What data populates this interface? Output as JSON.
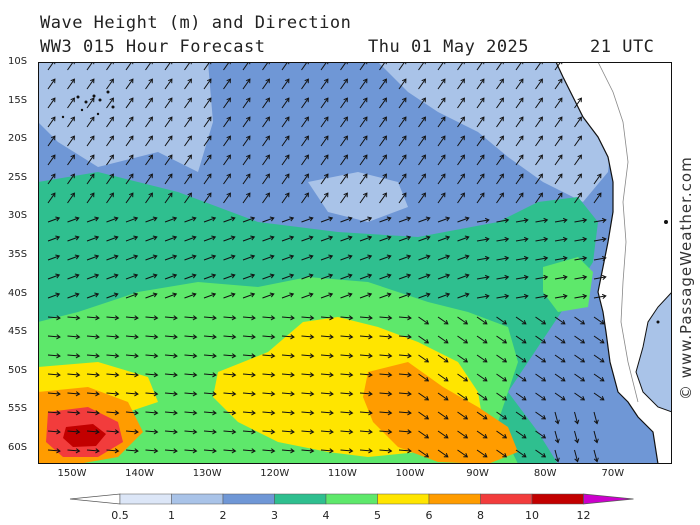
{
  "header": {
    "title": "Wave Height (m) and Direction",
    "model": "WW3 015 Hour Forecast",
    "date": "Thu 01 May 2025",
    "time": "21 UTC"
  },
  "lat_ticks": [
    "10S",
    "15S",
    "20S",
    "25S",
    "30S",
    "35S",
    "40S",
    "45S",
    "50S",
    "55S",
    "60S"
  ],
  "lon_ticks": [
    "150W",
    "140W",
    "130W",
    "120W",
    "110W",
    "100W",
    "90W",
    "80W",
    "70W"
  ],
  "credit": "© www.PassageWeather.com",
  "legend": {
    "values": [
      "0.5",
      "1",
      "2",
      "3",
      "4",
      "5",
      "6",
      "8",
      "10",
      "12"
    ],
    "colors": [
      "#dce6f7",
      "#a9c3e8",
      "#6f97d6",
      "#2fbf8f",
      "#5ee86b",
      "#ffe500",
      "#ff9c00",
      "#f23c3c",
      "#c20000",
      "#cc00cc"
    ]
  },
  "palette": {
    "land": "#ffffff",
    "coast": "#111111",
    "arrow": "#111111"
  }
}
